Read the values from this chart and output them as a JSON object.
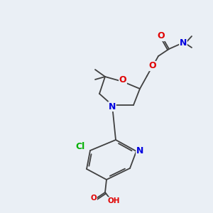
{
  "background_color": "#eaeff5",
  "bond_color": "#404040",
  "atom_colors": {
    "O": "#e00000",
    "N": "#0000e0",
    "Cl": "#00b000",
    "C": "#404040"
  },
  "font_size_atom": 9,
  "font_size_small": 7.5
}
